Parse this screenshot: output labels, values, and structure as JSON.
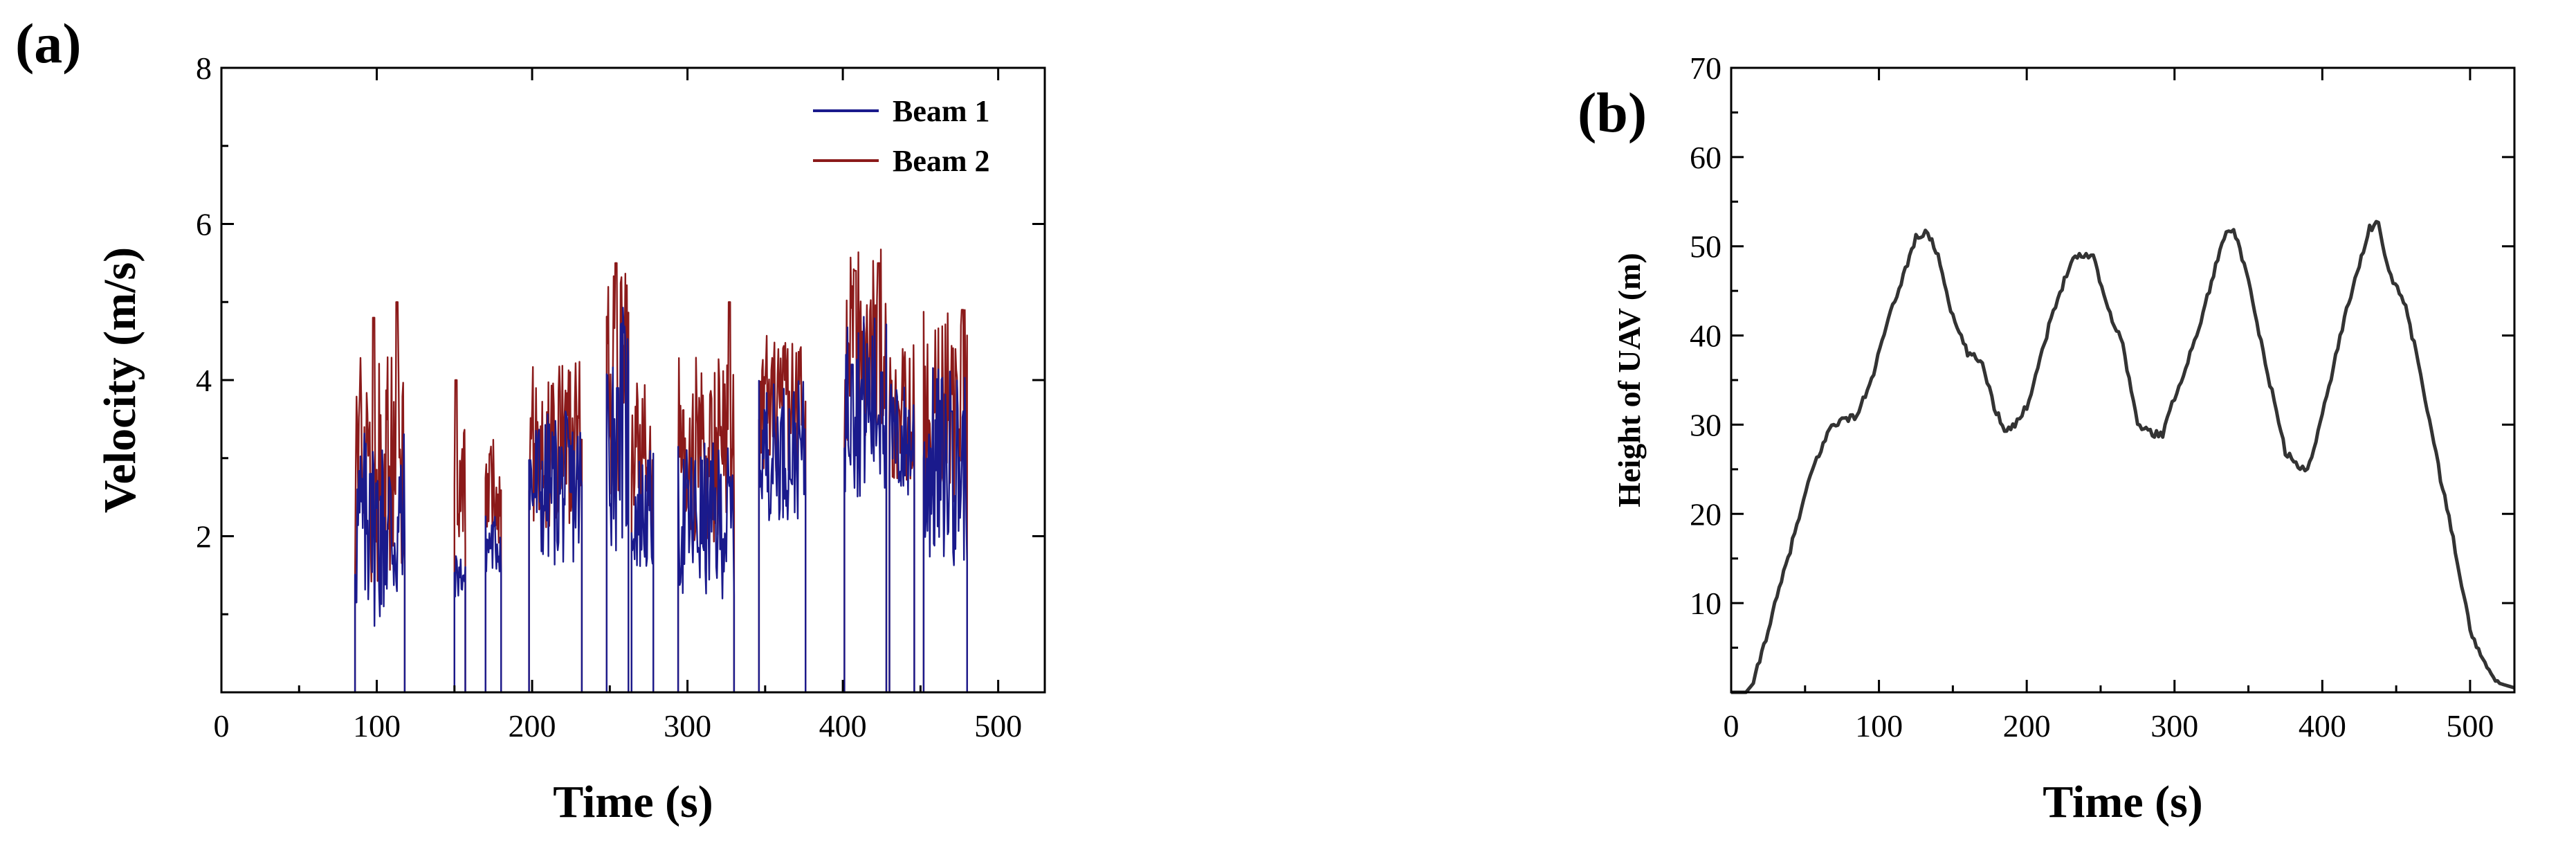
{
  "chart_data": [
    {
      "type": "line",
      "panel_label": "(a)",
      "xlabel": "Time (s)",
      "ylabel": "Velocity (m/s)",
      "xlim": [
        0,
        530
      ],
      "ylim": [
        0,
        8
      ],
      "xticks": [
        0,
        100,
        200,
        300,
        400,
        500
      ],
      "yticks": [
        2,
        4,
        6,
        8
      ],
      "grid": false,
      "legend_position": "top-right",
      "series": [
        {
          "name": "Beam 1",
          "color": "#1a1a8c",
          "segments": [
            [
              86,
              118,
              2.1,
              1.3
            ],
            [
              150,
              157,
              1.5,
              0.3
            ],
            [
              170,
              180,
              1.9,
              0.4
            ],
            [
              198,
              232,
              2.6,
              1.0
            ],
            [
              248,
              262,
              3.4,
              1.6
            ],
            [
              264,
              278,
              2.3,
              0.8
            ],
            [
              294,
              330,
              2.2,
              1.0
            ],
            [
              346,
              376,
              3.1,
              0.9
            ],
            [
              401,
              428,
              3.7,
              1.2
            ],
            [
              430,
              446,
              3.2,
              0.8
            ],
            [
              452,
              480,
              2.9,
              1.3
            ]
          ],
          "spikes": [
            [
              96,
              2.8
            ],
            [
              255,
              3.9
            ],
            [
              406,
              4.2
            ],
            [
              425,
              4.1
            ],
            [
              470,
              3.6
            ]
          ]
        },
        {
          "name": "Beam 2",
          "color": "#8b1a1a",
          "segments": [
            [
              86,
              118,
              2.8,
              1.5
            ],
            [
              150,
              157,
              2.6,
              0.8
            ],
            [
              170,
              180,
              2.6,
              0.7
            ],
            [
              198,
              232,
              3.2,
              1.1
            ],
            [
              248,
              262,
              4.0,
              1.5
            ],
            [
              264,
              278,
              3.0,
              1.0
            ],
            [
              294,
              330,
              3.1,
              1.2
            ],
            [
              346,
              376,
              3.7,
              0.9
            ],
            [
              401,
              428,
              4.4,
              1.3
            ],
            [
              430,
              446,
              3.6,
              0.9
            ],
            [
              452,
              480,
              3.7,
              1.3
            ]
          ],
          "spikes": [
            [
              98,
              4.8
            ],
            [
              113,
              5.0
            ],
            [
              151,
              4.0
            ],
            [
              254,
              5.5
            ],
            [
              327,
              5.0
            ],
            [
              408,
              5.4
            ],
            [
              423,
              5.5
            ],
            [
              477,
              4.9
            ]
          ]
        }
      ]
    },
    {
      "type": "line",
      "panel_label": "(b)",
      "xlabel": "Time (s)",
      "ylabel": "Height of UAV (m)",
      "xlim": [
        0,
        530
      ],
      "ylim": [
        0,
        70
      ],
      "xticks": [
        0,
        100,
        200,
        300,
        400,
        500
      ],
      "yticks": [
        10,
        20,
        30,
        40,
        50,
        60,
        70
      ],
      "grid": false,
      "series": [
        {
          "name": "Height",
          "color": "#333333",
          "x": [
            0,
            10,
            15,
            25,
            40,
            55,
            68,
            75,
            85,
            95,
            105,
            115,
            125,
            133,
            140,
            150,
            160,
            170,
            178,
            185,
            192,
            200,
            215,
            230,
            237,
            245,
            255,
            265,
            275,
            285,
            292,
            300,
            315,
            325,
            335,
            340,
            350,
            360,
            375,
            385,
            390,
            400,
            415,
            425,
            432,
            438,
            445,
            455,
            465,
            480,
            490,
            500,
            510,
            520,
            530
          ],
          "y": [
            0,
            0,
            1,
            7,
            16,
            25,
            30,
            30.5,
            31,
            35,
            41,
            46,
            51,
            51.5,
            49,
            42,
            38,
            37,
            32,
            29.5,
            30,
            32,
            41,
            48.5,
            49,
            49,
            43,
            39,
            30,
            29,
            29,
            33,
            40,
            46,
            52,
            52,
            46,
            38,
            27,
            25,
            25,
            31,
            42,
            48,
            52,
            52.5,
            47,
            44,
            37,
            24,
            16,
            7,
            3,
            1,
            0.5
          ]
        }
      ]
    }
  ]
}
